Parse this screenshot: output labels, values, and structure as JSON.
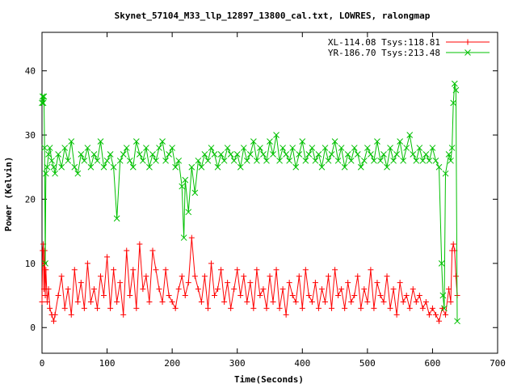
{
  "chart_data": {
    "type": "line",
    "title": "Skynet_57104_M33_llp_12897_13800_cal.txt, LOWRES, ralongmap",
    "xlabel": "Time(Seconds)",
    "ylabel": "Power (Kelvin)",
    "xlim": [
      0,
      700
    ],
    "ylim": [
      -4,
      46
    ],
    "x_ticks": [
      0,
      100,
      200,
      300,
      400,
      500,
      600,
      700
    ],
    "y_ticks": [
      0,
      10,
      20,
      30,
      40
    ],
    "grid": false,
    "legend_position": "top-right",
    "series": [
      {
        "name": "XL-114.08 Tsys:118.81",
        "color": "#ff0000",
        "marker": "plus",
        "x": [
          0,
          1,
          2,
          3,
          4,
          5,
          6,
          8,
          10,
          12,
          15,
          18,
          20,
          25,
          30,
          35,
          40,
          45,
          50,
          55,
          60,
          65,
          70,
          75,
          80,
          85,
          90,
          95,
          100,
          105,
          110,
          115,
          120,
          125,
          130,
          135,
          140,
          145,
          150,
          155,
          160,
          165,
          170,
          175,
          180,
          185,
          190,
          195,
          200,
          205,
          210,
          215,
          220,
          225,
          230,
          235,
          240,
          245,
          250,
          255,
          260,
          265,
          270,
          275,
          280,
          285,
          290,
          295,
          300,
          305,
          310,
          315,
          320,
          325,
          330,
          335,
          340,
          345,
          350,
          355,
          360,
          365,
          370,
          375,
          380,
          385,
          390,
          395,
          400,
          405,
          410,
          415,
          420,
          425,
          430,
          435,
          440,
          445,
          450,
          455,
          460,
          465,
          470,
          475,
          480,
          485,
          490,
          495,
          500,
          505,
          510,
          515,
          520,
          525,
          530,
          535,
          540,
          545,
          550,
          555,
          560,
          565,
          570,
          575,
          580,
          585,
          590,
          595,
          600,
          605,
          610,
          615,
          620,
          625,
          628,
          630,
          632,
          634,
          636,
          638
        ],
        "y": [
          4,
          12,
          13,
          6,
          12,
          5,
          9,
          4,
          6,
          3,
          2,
          1,
          2,
          5,
          8,
          3,
          6,
          2,
          9,
          4,
          7,
          3,
          10,
          4,
          6,
          3,
          8,
          5,
          11,
          3,
          9,
          4,
          7,
          2,
          12,
          5,
          9,
          3,
          13,
          6,
          8,
          4,
          12,
          9,
          6,
          4,
          9,
          5,
          4,
          3,
          6,
          8,
          5,
          7,
          14,
          8,
          6,
          4,
          8,
          3,
          10,
          5,
          6,
          9,
          4,
          7,
          3,
          6,
          9,
          5,
          8,
          4,
          7,
          3,
          9,
          5,
          6,
          3,
          8,
          4,
          9,
          3,
          6,
          2,
          7,
          5,
          4,
          8,
          3,
          9,
          5,
          4,
          7,
          3,
          6,
          4,
          8,
          3,
          9,
          5,
          6,
          3,
          7,
          4,
          5,
          8,
          3,
          6,
          4,
          9,
          3,
          7,
          5,
          4,
          8,
          3,
          6,
          2,
          7,
          4,
          5,
          3,
          6,
          4,
          5,
          3,
          4,
          2,
          3,
          2,
          1,
          3,
          2,
          6,
          4,
          12,
          13,
          12,
          8,
          5
        ]
      },
      {
        "name": "YR-186.70 Tsys:213.48",
        "color": "#00c000",
        "marker": "cross",
        "x": [
          0,
          1,
          2,
          3,
          4,
          5,
          6,
          8,
          10,
          12,
          15,
          18,
          20,
          25,
          30,
          35,
          40,
          45,
          50,
          55,
          60,
          65,
          70,
          75,
          80,
          85,
          90,
          95,
          100,
          105,
          110,
          115,
          120,
          125,
          130,
          135,
          140,
          145,
          150,
          155,
          160,
          165,
          170,
          175,
          180,
          185,
          190,
          195,
          200,
          205,
          210,
          215,
          218,
          220,
          225,
          230,
          235,
          240,
          245,
          250,
          255,
          260,
          265,
          270,
          275,
          280,
          285,
          290,
          295,
          300,
          305,
          310,
          315,
          320,
          325,
          330,
          335,
          340,
          345,
          350,
          355,
          360,
          365,
          370,
          375,
          380,
          385,
          390,
          395,
          400,
          405,
          410,
          415,
          420,
          425,
          430,
          435,
          440,
          445,
          450,
          455,
          460,
          465,
          470,
          475,
          480,
          485,
          490,
          495,
          500,
          505,
          510,
          515,
          520,
          525,
          530,
          535,
          540,
          545,
          550,
          555,
          560,
          565,
          570,
          575,
          580,
          585,
          590,
          595,
          600,
          605,
          610,
          614,
          616,
          618,
          620,
          625,
          628,
          630,
          632,
          634,
          636,
          638
        ],
        "y": [
          35,
          36,
          35,
          36,
          28,
          10,
          24,
          25,
          27,
          28,
          26,
          25,
          24,
          27,
          25,
          28,
          26,
          29,
          25,
          24,
          27,
          26,
          28,
          25,
          27,
          26,
          29,
          25,
          26,
          27,
          25,
          17,
          26,
          27,
          28,
          26,
          25,
          29,
          27,
          26,
          28,
          25,
          27,
          26,
          28,
          29,
          26,
          27,
          28,
          25,
          26,
          22,
          14,
          23,
          18,
          25,
          21,
          26,
          25,
          27,
          26,
          28,
          27,
          25,
          27,
          26,
          28,
          27,
          26,
          27,
          25,
          28,
          26,
          27,
          29,
          26,
          28,
          27,
          26,
          29,
          27,
          30,
          26,
          28,
          27,
          26,
          28,
          25,
          27,
          29,
          26,
          27,
          28,
          26,
          27,
          25,
          28,
          26,
          27,
          29,
          26,
          28,
          25,
          27,
          26,
          28,
          27,
          25,
          26,
          28,
          27,
          26,
          29,
          26,
          27,
          25,
          28,
          26,
          27,
          29,
          26,
          28,
          30,
          27,
          26,
          28,
          26,
          27,
          26,
          28,
          26,
          25,
          10,
          5,
          3,
          24,
          27,
          26,
          28,
          35,
          38,
          37,
          1
        ]
      }
    ]
  }
}
